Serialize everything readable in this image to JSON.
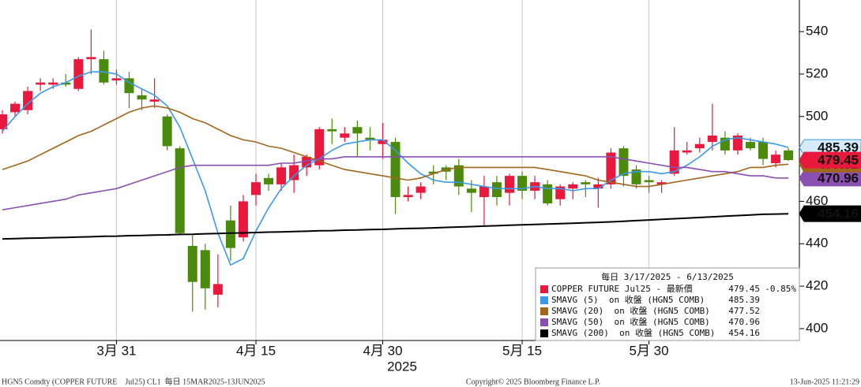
{
  "chart_data": {
    "type": "candlestick",
    "title": "每日 3/17/2025 - 6/13/2025",
    "x_label": "2025",
    "categories": [
      null,
      null,
      null,
      null,
      null,
      null,
      null,
      null,
      null,
      "3月 31",
      null,
      null,
      null,
      null,
      null,
      null,
      null,
      null,
      null,
      null,
      "4月 15",
      null,
      null,
      null,
      null,
      null,
      null,
      null,
      null,
      null,
      "4月 30",
      null,
      null,
      null,
      null,
      null,
      null,
      null,
      null,
      null,
      null,
      "5月 15",
      null,
      null,
      null,
      null,
      null,
      null,
      null,
      null,
      null,
      "5月 30",
      null,
      null,
      null,
      null,
      null,
      null,
      null,
      null,
      null,
      null,
      null
    ],
    "instrument": {
      "name": "COPPER FUTURE Jul25 - 最新價",
      "last": 479.45,
      "change": "-0.85%",
      "up_color": "#e8193c",
      "down_color": "#4b8a0c"
    },
    "open": [
      494,
      502,
      503,
      515,
      515,
      516,
      513,
      527,
      527,
      517,
      518,
      510,
      507,
      500,
      485,
      439,
      437,
      416,
      451,
      443,
      463,
      471,
      468,
      470,
      476,
      477,
      494,
      490,
      495,
      490,
      487,
      488,
      462,
      464,
      474,
      476,
      477,
      466,
      462,
      469,
      464,
      472,
      465,
      468,
      461,
      466,
      469,
      466,
      468,
      485,
      475,
      470,
      468,
      473,
      483,
      485,
      488,
      490,
      484,
      488,
      488,
      478,
      484
    ],
    "high": [
      503,
      507,
      514,
      518,
      518,
      520,
      528,
      541,
      531,
      522,
      521,
      513,
      518,
      501,
      486,
      444,
      440,
      435,
      458,
      463,
      473,
      473,
      478,
      482,
      482,
      495,
      499,
      495,
      498,
      495,
      497,
      490,
      467,
      469,
      477,
      477,
      480,
      470,
      472,
      472,
      473,
      474,
      472,
      470,
      468,
      469,
      470,
      471,
      485,
      486,
      477,
      472,
      470,
      495,
      488,
      490,
      506,
      493,
      492,
      490,
      490,
      484,
      485
    ],
    "low": [
      492,
      500,
      501,
      512,
      513,
      514,
      512,
      520,
      515,
      515,
      504,
      503,
      504,
      484,
      444,
      408,
      409,
      410,
      432,
      441,
      458,
      465,
      465,
      464,
      472,
      475,
      487,
      488,
      481,
      484,
      480,
      454,
      460,
      461,
      468,
      470,
      463,
      455,
      448,
      458,
      458,
      461,
      461,
      458,
      458,
      461,
      462,
      457,
      466,
      467,
      466,
      464,
      464,
      472,
      482,
      483,
      484,
      482,
      482,
      484,
      477,
      476,
      479
    ],
    "close": [
      501,
      506,
      512,
      516,
      516,
      515,
      527,
      528,
      516,
      518,
      511,
      508,
      508,
      486,
      445,
      422,
      419,
      421,
      438,
      460,
      469,
      468,
      476,
      477,
      481,
      494,
      493,
      492,
      492,
      489,
      489,
      462,
      463,
      467,
      473,
      474,
      467,
      464,
      467,
      462,
      472,
      465,
      469,
      459,
      467,
      468,
      468,
      468,
      483,
      472,
      468,
      469,
      469,
      484,
      484,
      487,
      491,
      484,
      491,
      485,
      480,
      482,
      479.45
    ],
    "series": [
      {
        "name": "SMAVG (5)  on 收盤 (HGN5 COMB)",
        "color": "#3a9ae8",
        "last": 485.39,
        "values": [
          493,
          500,
          506,
          511,
          514,
          516,
          519,
          521,
          521,
          520,
          516,
          513,
          510,
          505,
          495,
          480,
          465,
          445,
          430,
          433,
          446,
          457,
          466,
          472,
          477,
          480,
          484,
          487,
          488,
          489,
          489,
          484,
          478,
          473,
          470,
          469,
          469,
          468,
          467,
          466,
          466,
          466,
          467,
          466,
          466,
          465,
          466,
          466,
          470,
          473,
          474,
          474,
          473,
          474,
          477,
          481,
          486,
          489,
          490,
          489,
          488,
          487,
          485.39
        ]
      },
      {
        "name": "SMAVG (20)  on 收盤 (HGN5 COMB)",
        "color": "#a0661c",
        "last": 477.52,
        "values": [
          475,
          477,
          479,
          482,
          485,
          488,
          491,
          493,
          496,
          499,
          502,
          504,
          505,
          504,
          502,
          499,
          497,
          494,
          491,
          489,
          488,
          486,
          485,
          483,
          481,
          479,
          477,
          475,
          474,
          473,
          472,
          471,
          470,
          471,
          473,
          475,
          476,
          476,
          476,
          476,
          476,
          476,
          476,
          475,
          474,
          473,
          472,
          470,
          469,
          468,
          467,
          467,
          468,
          469,
          470,
          471,
          472,
          473,
          474,
          476,
          476,
          477,
          477.52
        ]
      },
      {
        "name": "SMAVG (50)  on 收盤 (HGN5 COMB)",
        "color": "#8a4fb0",
        "last": 470.96,
        "values": [
          456,
          457,
          458,
          459,
          460,
          461,
          463,
          464,
          465,
          466,
          468,
          470,
          472,
          474,
          476,
          477,
          477,
          477,
          477,
          477,
          477,
          477,
          478,
          478,
          479,
          480,
          480,
          481,
          481,
          481,
          481,
          481,
          481,
          481,
          481,
          481,
          481,
          481,
          481,
          481,
          481,
          481,
          481,
          481,
          481,
          481,
          481,
          481,
          481,
          480,
          479,
          478,
          477,
          476,
          476,
          475,
          474,
          474,
          473,
          472,
          472,
          471,
          470.96
        ]
      },
      {
        "name": "SMAVG (200)  on 收盤 (HGN5 COMB)",
        "color": "#000000",
        "last": 454.16,
        "values": [
          442.3,
          442.4,
          442.6,
          442.7,
          442.9,
          443.0,
          443.2,
          443.3,
          443.5,
          443.6,
          443.8,
          443.9,
          444.1,
          444.2,
          444.4,
          444.5,
          444.7,
          444.8,
          445.0,
          445.1,
          445.3,
          445.5,
          445.6,
          445.8,
          445.9,
          446.1,
          446.2,
          446.4,
          446.5,
          446.7,
          446.8,
          447.0,
          447.2,
          447.3,
          447.5,
          447.7,
          447.9,
          448.1,
          448.3,
          448.5,
          448.7,
          448.9,
          449.1,
          449.3,
          449.5,
          449.7,
          449.9,
          450.1,
          450.3,
          450.6,
          450.9,
          451.2,
          451.5,
          451.8,
          452.1,
          452.4,
          452.7,
          453.0,
          453.3,
          453.6,
          453.9,
          454.0,
          454.16
        ]
      }
    ],
    "ylim": [
      394.4,
      554.9
    ],
    "yticks": [
      400,
      420,
      440,
      460,
      480,
      500,
      520,
      540
    ],
    "grid": true,
    "footer": {
      "left": "HGN5 Comdty (COPPER FUTURE    Jul25) CL1  每日 15MAR2025-13JUN2025",
      "center": "Copyright© 2025 Bloomberg Finance L.P.",
      "right": "13-Jun-2025 11:21:29"
    }
  }
}
